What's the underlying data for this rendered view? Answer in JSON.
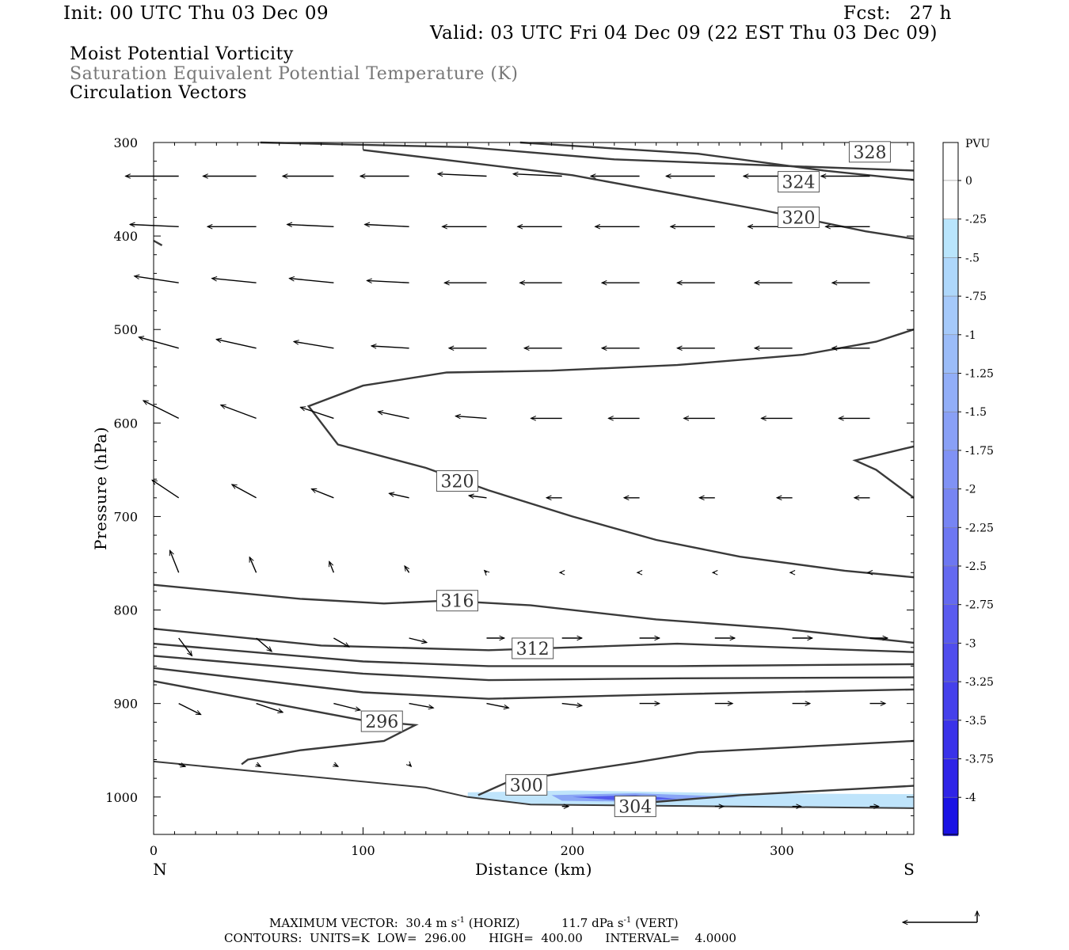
{
  "header": {
    "init": "Init: 00 UTC Thu 03 Dec 09",
    "fcst": "Fcst:   27 h",
    "valid": "Valid: 03 UTC Fri 04 Dec 09 (22 EST Thu 03 Dec 09)",
    "fields": [
      "Moist Potential Vorticity",
      "Saturation Equivalent Potential Temperature (K)",
      "Circulation Vectors"
    ]
  },
  "colors": {
    "contour": "#3a3a3a",
    "pv_light": "#bfe4fb",
    "pv_mid": "#8aa6f5",
    "pv_dark": "#3a3ae8"
  },
  "chart_data": {
    "type": "contour-cross-section",
    "xlabel": "Distance (km)",
    "ylabel": "Pressure (hPa)",
    "xlim": [
      0,
      363
    ],
    "ylim": [
      1040,
      300
    ],
    "x_ticks": [
      "0",
      "100",
      "200",
      "300"
    ],
    "y_ticks": [
      "300",
      "400",
      "500",
      "600",
      "700",
      "800",
      "900",
      "1000"
    ],
    "end_labels": {
      "left": "N",
      "right": "S"
    },
    "colorbar": {
      "label": "PVU",
      "ticks": [
        "0",
        "-.25",
        "-.5",
        "-.75",
        "-1",
        "-1.25",
        "-1.5",
        "-1.75",
        "-2",
        "-2.25",
        "-2.5",
        "-2.75",
        "-3",
        "-3.25",
        "-3.5",
        "-3.75",
        "-4"
      ],
      "colors": [
        "#ffffff",
        "#ffffff",
        "#b9e5fc",
        "#aed7fb",
        "#a5c9fa",
        "#9bbcf8",
        "#92aef7",
        "#89a0f6",
        "#8092f5",
        "#7785f3",
        "#6d77f2",
        "#6469f0",
        "#5a5bef",
        "#504ded",
        "#4540eb",
        "#3a32e9",
        "#2f24e7",
        "#1a12e4"
      ]
    },
    "contour_labels": [
      "328",
      "324",
      "320",
      "320",
      "316",
      "312",
      "296",
      "300",
      "304"
    ],
    "contours": [
      {
        "level": 328,
        "points": [
          [
            51,
            300
          ],
          [
            150,
            305
          ],
          [
            220,
            318
          ],
          [
            300,
            325
          ],
          [
            363,
            330
          ]
        ]
      },
      {
        "level": 324,
        "points": [
          [
            175,
            300
          ],
          [
            260,
            312
          ],
          [
            320,
            330
          ],
          [
            363,
            340
          ]
        ]
      },
      {
        "level": 320,
        "points": [
          [
            100,
            308
          ],
          [
            200,
            335
          ],
          [
            290,
            372
          ],
          [
            340,
            395
          ],
          [
            363,
            403
          ]
        ]
      },
      {
        "level": 320,
        "points": [
          [
            363,
            500
          ],
          [
            345,
            513
          ],
          [
            310,
            527
          ],
          [
            250,
            538
          ],
          [
            190,
            544
          ],
          [
            140,
            546
          ],
          [
            100,
            560
          ],
          [
            74,
            582
          ],
          [
            88,
            623
          ],
          [
            130,
            648
          ],
          [
            160,
            672
          ],
          [
            200,
            700
          ],
          [
            240,
            725
          ],
          [
            280,
            743
          ],
          [
            330,
            758
          ],
          [
            363,
            765
          ]
        ]
      },
      {
        "level": 320,
        "points": [
          [
            363,
            625
          ],
          [
            335,
            640
          ],
          [
            345,
            650
          ],
          [
            363,
            680
          ]
        ]
      },
      {
        "level": 316,
        "points": [
          [
            0,
            773
          ],
          [
            70,
            788
          ],
          [
            110,
            793
          ],
          [
            140,
            790
          ],
          [
            180,
            795
          ],
          [
            240,
            810
          ],
          [
            300,
            820
          ],
          [
            363,
            835
          ]
        ]
      },
      {
        "level": 312,
        "points": [
          [
            0,
            820
          ],
          [
            80,
            838
          ],
          [
            160,
            843
          ],
          [
            250,
            836
          ],
          [
            363,
            845
          ]
        ]
      },
      {
        "level": 308,
        "points": [
          [
            0,
            836
          ],
          [
            100,
            855
          ],
          [
            160,
            860
          ],
          [
            250,
            860
          ],
          [
            363,
            858
          ]
        ]
      },
      {
        "level": 304,
        "points": [
          [
            0,
            849
          ],
          [
            100,
            868
          ],
          [
            160,
            875
          ],
          [
            250,
            873
          ],
          [
            363,
            872
          ]
        ]
      },
      {
        "level": 300,
        "points": [
          [
            0,
            862
          ],
          [
            100,
            888
          ],
          [
            160,
            895
          ],
          [
            250,
            890
          ],
          [
            363,
            885
          ]
        ]
      },
      {
        "level": 296,
        "points": [
          [
            0,
            876
          ],
          [
            100,
            918
          ],
          [
            125,
            923
          ],
          [
            110,
            940
          ],
          [
            70,
            950
          ],
          [
            45,
            960
          ],
          [
            42,
            965
          ]
        ]
      },
      {
        "level": 300,
        "points": [
          [
            155,
            998
          ],
          [
            170,
            983
          ],
          [
            230,
            963
          ],
          [
            260,
            952
          ],
          [
            363,
            940
          ]
        ]
      },
      {
        "level": 304,
        "points": [
          [
            230,
            1007
          ],
          [
            280,
            998
          ],
          [
            330,
            992
          ],
          [
            363,
            988
          ]
        ]
      },
      {
        "level": "terrain",
        "points": [
          [
            0,
            962
          ],
          [
            60,
            975
          ],
          [
            130,
            990
          ],
          [
            150,
            1000
          ],
          [
            180,
            1008
          ],
          [
            363,
            1012
          ]
        ]
      },
      {
        "level": 308,
        "points": [
          [
            0,
            405
          ],
          [
            4,
            410
          ]
        ]
      }
    ],
    "pv_region": [
      {
        "level": -0.25,
        "points": [
          [
            150,
            995
          ],
          [
            200,
            993
          ],
          [
            280,
            996
          ],
          [
            363,
            997
          ],
          [
            363,
            1012
          ],
          [
            180,
            1008
          ],
          [
            150,
            1000
          ]
        ]
      },
      {
        "level": -1.75,
        "points": [
          [
            190,
            998
          ],
          [
            230,
            996
          ],
          [
            280,
            1000
          ],
          [
            230,
            1005
          ],
          [
            195,
            1004
          ]
        ]
      },
      {
        "level": -3.0,
        "points": [
          [
            200,
            1000
          ],
          [
            230,
            998
          ],
          [
            250,
            1002
          ],
          [
            225,
            1004
          ]
        ]
      }
    ],
    "vectors": {
      "x_km": [
        12,
        49,
        86,
        122,
        159,
        195,
        232,
        268,
        305,
        342
      ],
      "rows": [
        {
          "p": 336,
          "u": [
            -24,
            -24,
            -23,
            -22,
            -22,
            -22,
            -22,
            -22,
            -22,
            -22
          ],
          "w": [
            0,
            0,
            0,
            0,
            1,
            1,
            0,
            0,
            0,
            0
          ]
        },
        {
          "p": 390,
          "u": [
            -22,
            -22,
            -21,
            -20,
            -20,
            -20,
            -20,
            -20,
            -20,
            -20
          ],
          "w": [
            1,
            0,
            1,
            1,
            0,
            0,
            0,
            0,
            0,
            0
          ]
        },
        {
          "p": 450,
          "u": [
            -20,
            -20,
            -20,
            -19,
            -19,
            -19,
            -17,
            -17,
            -17,
            -17
          ],
          "w": [
            3,
            2,
            2,
            1,
            0,
            0,
            0,
            0,
            0,
            0
          ]
        },
        {
          "p": 520,
          "u": [
            -18,
            -18,
            -18,
            -17,
            -17,
            -17,
            -17,
            -17,
            -17,
            -17
          ],
          "w": [
            5,
            4,
            3,
            1,
            0,
            0,
            0,
            0,
            0,
            0
          ]
        },
        {
          "p": 595,
          "u": [
            -16,
            -16,
            -15,
            -14,
            -14,
            -14,
            -14,
            -14,
            -14,
            -14
          ],
          "w": [
            8,
            6,
            5,
            3,
            1,
            0,
            0,
            0,
            0,
            0
          ]
        },
        {
          "p": 680,
          "u": [
            -12,
            -11,
            -10,
            -9,
            -8,
            -7,
            -7,
            -7,
            -7,
            -7
          ],
          "w": [
            8,
            6,
            4,
            2,
            1,
            0,
            0,
            0,
            0,
            0
          ]
        },
        {
          "p": 760,
          "u": [
            -4,
            -3,
            -2,
            -2,
            -1,
            -1,
            -1,
            -1,
            -1,
            -1
          ],
          "w": [
            10,
            7,
            5,
            3,
            1,
            0,
            0,
            0,
            0,
            0
          ]
        },
        {
          "p": 830,
          "u": [
            6,
            7,
            7,
            8,
            8,
            9,
            9,
            9,
            9,
            8
          ],
          "w": [
            -8,
            -6,
            -4,
            -2,
            0,
            0,
            0,
            0,
            0,
            0
          ]
        },
        {
          "p": 900,
          "u": [
            10,
            12,
            12,
            11,
            10,
            9,
            9,
            8,
            8,
            7
          ],
          "w": [
            -5,
            -4,
            -3,
            -2,
            -2,
            -1,
            0,
            0,
            0,
            0
          ]
        },
        {
          "p": 965,
          "u": [
            3,
            2,
            2,
            1,
            0,
            0,
            0,
            0,
            0,
            0
          ],
          "w": [
            -1,
            -1,
            -1,
            -1,
            0,
            0,
            0,
            0,
            0,
            0
          ]
        },
        {
          "p": 1010,
          "u": [
            0,
            0,
            0,
            0,
            0,
            3,
            4,
            4,
            4,
            4
          ],
          "w": [
            0,
            0,
            0,
            0,
            0,
            0,
            0,
            0,
            0,
            0
          ]
        }
      ]
    },
    "footer": {
      "line1": "MAXIMUM VECTOR:  30.4 m s",
      "line1b": " (HORIZ)",
      "line1c": "11.7 dPa s",
      "line1d": " (VERT)",
      "sup": "-1",
      "line2": "CONTOURS:  UNITS=K  LOW=  296.00      HIGH=  400.00      INTERVAL=    4.0000"
    }
  }
}
